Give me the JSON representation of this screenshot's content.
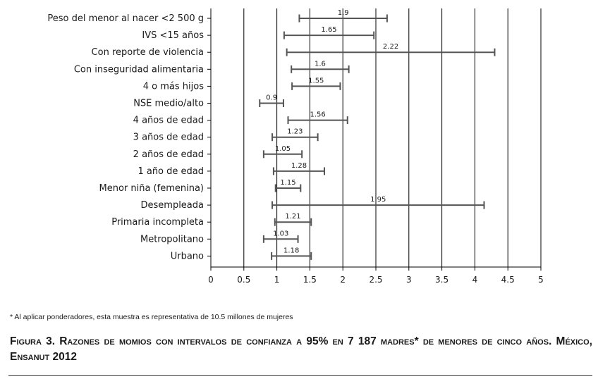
{
  "chart_data": {
    "type": "forest",
    "categories": [
      "Peso del menor al nacer <2 500 g",
      "IVS <15 años",
      "Con reporte de violencia",
      "Con inseguridad alimentaria",
      "4 o más hijos",
      "NSE medio/alto",
      "4 años de edad",
      "3 años de edad",
      "2 años de edad",
      "1 año de edad",
      "Menor niña (femenina)",
      "Desempleada",
      "Primaria incompleta",
      "Metropolitano",
      "Urbano"
    ],
    "estimates": [
      1.9,
      1.65,
      2.22,
      1.6,
      1.55,
      0.9,
      1.56,
      1.23,
      1.05,
      1.28,
      1.15,
      1.95,
      1.21,
      1.03,
      1.18
    ],
    "estimate_labels": [
      "1.9",
      "1.65",
      "2.22",
      "1.6",
      "1.55",
      "0.9",
      "1.56",
      "1.23",
      "1.05",
      "1.28",
      "1.15",
      "1.95",
      "1.21",
      "1.03",
      "1.18"
    ],
    "ci_lower": [
      1.34,
      1.11,
      1.15,
      1.22,
      1.23,
      0.74,
      1.17,
      0.93,
      0.8,
      0.95,
      0.98,
      0.93,
      0.97,
      0.8,
      0.92
    ],
    "ci_upper": [
      2.67,
      2.47,
      4.3,
      2.09,
      1.96,
      1.1,
      2.07,
      1.62,
      1.38,
      1.72,
      1.36,
      4.14,
      1.52,
      1.32,
      1.52
    ],
    "xticks": [
      "0",
      "0.5",
      "1",
      "1.5",
      "2",
      "2.5",
      "3",
      "3.5",
      "4",
      "4.5",
      "5"
    ],
    "xlim": [
      0,
      5
    ],
    "grid": "vertical lines at each x tick",
    "colors": {
      "interval": "#555555",
      "grid": "#000000",
      "text": "#1a1a1a"
    }
  },
  "footnote": "* Al aplicar ponderadores, esta muestra es representativa de 10.5 millones de mujeres",
  "caption": "Figura 3. Razones de momios con intervalos de confianza a 95% en 7 187 madres* de menores de cinco años. México, Ensanut 2012"
}
